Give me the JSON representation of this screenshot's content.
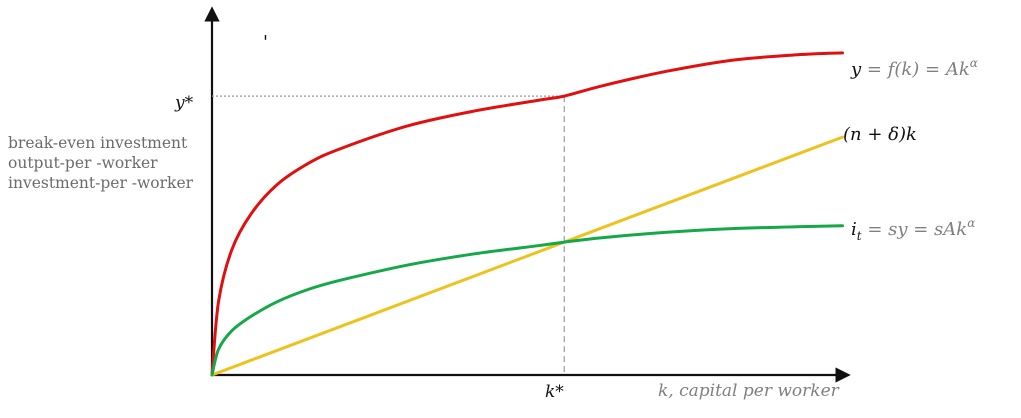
{
  "chart_data": {
    "type": "line",
    "title": "",
    "ylabel_lines": [
      "break-even investment",
      "output-per -worker",
      "investment-per -worker"
    ],
    "xlabel": "k,  capital per worker",
    "stray_mark": "'",
    "xlim": [
      0,
      1
    ],
    "ylim": [
      0,
      1
    ],
    "steady_state": {
      "x": 0.542,
      "y": 0.762,
      "x_label": "k*",
      "y_label": "y*",
      "i_value": 0.363
    },
    "series": [
      {
        "name": "y = f(k) = Ak^α",
        "label_main": "y",
        "label_rest": " = f(k) = Ak",
        "label_sup": "α",
        "color": "#e01010",
        "x": [
          0,
          0.01,
          0.03,
          0.06,
          0.1,
          0.15,
          0.2,
          0.3,
          0.4,
          0.5,
          0.542,
          0.6,
          0.7,
          0.8,
          0.9,
          0.97
        ],
        "y": [
          0,
          0.2,
          0.34,
          0.44,
          0.52,
          0.58,
          0.62,
          0.68,
          0.72,
          0.75,
          0.762,
          0.79,
          0.83,
          0.86,
          0.875,
          0.88
        ]
      },
      {
        "name": "(n + δ)k",
        "label_main": "(n + δ)k",
        "color": "#eec21e",
        "x": [
          0,
          0.97
        ],
        "y": [
          0,
          0.65
        ]
      },
      {
        "name": "i_t = sy = sAk^α",
        "label_main": "i",
        "label_sub": "t",
        "label_rest": " = sy = sAk",
        "label_sup": "α",
        "color": "#14a848",
        "x": [
          0,
          0.01,
          0.03,
          0.06,
          0.1,
          0.15,
          0.2,
          0.3,
          0.4,
          0.5,
          0.542,
          0.6,
          0.7,
          0.8,
          0.9,
          0.97
        ],
        "y": [
          0,
          0.07,
          0.12,
          0.16,
          0.2,
          0.235,
          0.26,
          0.3,
          0.33,
          0.353,
          0.363,
          0.375,
          0.39,
          0.4,
          0.405,
          0.408
        ]
      }
    ]
  }
}
